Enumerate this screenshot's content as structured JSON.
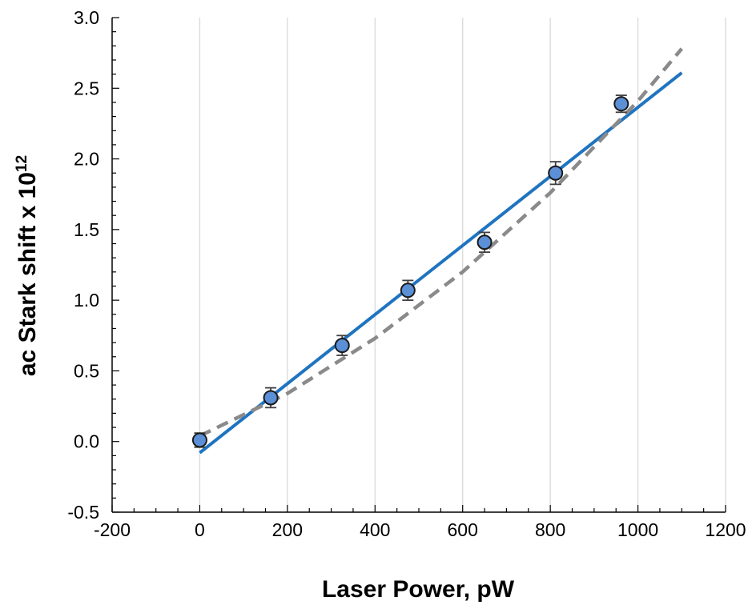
{
  "chart_data": {
    "type": "scatter",
    "xlabel": "Laser Power, pW",
    "ylabel": "ac Stark shift x 10",
    "ylabel_superscript": "12",
    "xlim": [
      -200,
      1200
    ],
    "ylim": [
      -0.5,
      3.0
    ],
    "x_ticks": [
      -200,
      0,
      200,
      400,
      600,
      800,
      1000,
      1200
    ],
    "y_ticks": [
      -0.5,
      0.0,
      0.5,
      1.0,
      1.5,
      2.0,
      2.5,
      3.0
    ],
    "x_tick_labels": [
      "-200",
      "0",
      "200",
      "400",
      "600",
      "800",
      "1000",
      "1200"
    ],
    "y_tick_labels": [
      "-0.5",
      "0.0",
      "0.5",
      "1.0",
      "1.5",
      "2.0",
      "2.5",
      "3.0"
    ],
    "grid": "vertical",
    "series": [
      {
        "kind": "points",
        "x": [
          0,
          162,
          325,
          475,
          650,
          812,
          962
        ],
        "y": [
          0.01,
          0.31,
          0.68,
          1.07,
          1.41,
          1.9,
          2.39
        ],
        "error": [
          0.05,
          0.07,
          0.07,
          0.07,
          0.07,
          0.08,
          0.06
        ],
        "color": "#5b8fd6",
        "edge_color": "#1a1a1a"
      },
      {
        "kind": "line",
        "style": "solid",
        "x": [
          0,
          1100
        ],
        "y": [
          -0.08,
          2.61
        ],
        "color": "#1f74c0"
      },
      {
        "kind": "line",
        "style": "dashed",
        "x": [
          0,
          200,
          400,
          600,
          800,
          1000,
          1100
        ],
        "y": [
          0.04,
          0.34,
          0.73,
          1.2,
          1.76,
          2.41,
          2.78
        ],
        "color": "#8a8a8a"
      }
    ]
  }
}
